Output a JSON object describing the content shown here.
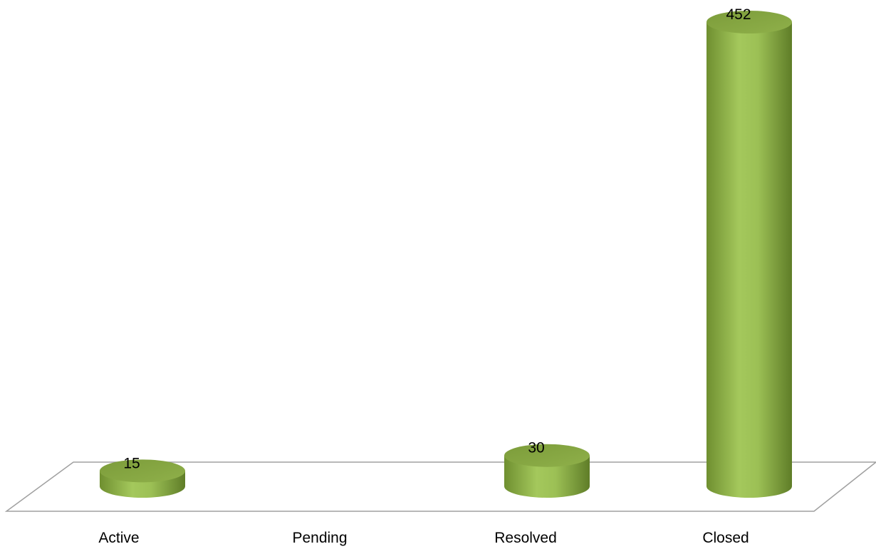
{
  "chart_data": {
    "type": "bar",
    "style": "3d-cylinder",
    "categories": [
      "Active",
      "Pending",
      "Resolved",
      "Closed"
    ],
    "values": [
      15,
      0,
      30,
      452
    ],
    "data_labels": [
      "15",
      "",
      "30",
      "452"
    ],
    "title": "",
    "xlabel": "",
    "ylabel": "",
    "grid": false,
    "legend": "none",
    "ylim": [
      0,
      452
    ]
  },
  "colors": {
    "bar_light": "#a4c85c",
    "bar_mid": "#8fb447",
    "bar_dark": "#5f7d28",
    "bar_top": "#86a843",
    "floor_stroke": "#a0a0a0"
  }
}
